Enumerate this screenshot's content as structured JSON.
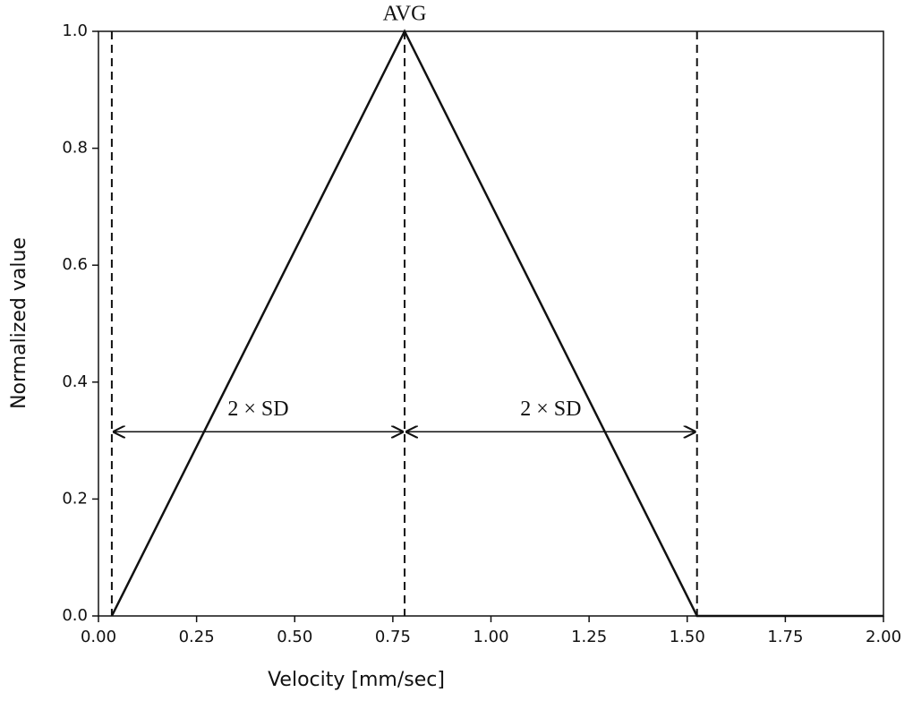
{
  "chart_data": {
    "type": "line",
    "xlabel": "Velocity [mm/sec]",
    "ylabel": "Normalized value",
    "x": [
      0.034,
      0.78,
      1.525,
      2.0
    ],
    "series": [
      {
        "name": "profile",
        "color": "#111111",
        "values": [
          0,
          1,
          0,
          0
        ]
      }
    ],
    "vlines": [
      0.034,
      0.78,
      1.525
    ],
    "annotations": [
      "AVG",
      "2 × SD",
      "2 × SD"
    ],
    "xlim": [
      0,
      2
    ],
    "ylim": [
      0,
      1
    ],
    "xticks": [
      {
        "value": 0,
        "label": "0.00"
      },
      {
        "value": 0.25,
        "label": "0.25"
      },
      {
        "value": 0.5,
        "label": "0.50"
      },
      {
        "value": 0.75,
        "label": "0.75"
      },
      {
        "value": 1,
        "label": "1.00"
      },
      {
        "value": 1.25,
        "label": "1.25"
      },
      {
        "value": 1.5,
        "label": "1.50"
      },
      {
        "value": 1.75,
        "label": "1.75"
      },
      {
        "value": 2,
        "label": "2.00"
      }
    ],
    "yticks": [
      {
        "value": 0,
        "label": "0.0"
      },
      {
        "value": 0.2,
        "label": "0.2"
      },
      {
        "value": 0.4,
        "label": "0.4"
      },
      {
        "value": 0.6,
        "label": "0.6"
      },
      {
        "value": 0.8,
        "label": "0.8"
      },
      {
        "value": 1,
        "label": "1.0"
      }
    ]
  }
}
